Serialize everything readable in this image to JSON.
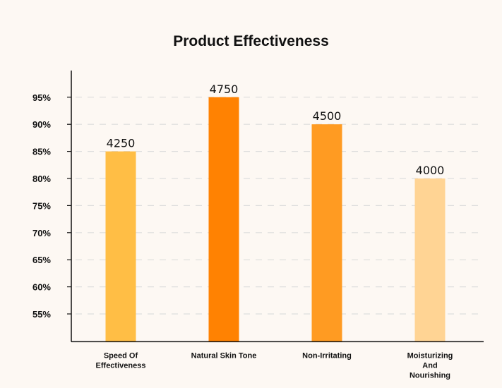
{
  "chart_data": {
    "type": "bar",
    "title": "Product Effectiveness",
    "xlabel": "",
    "ylabel": "",
    "categories": [
      [
        "Speed Of",
        "Effectiveness"
      ],
      [
        "Natural Skin Tone"
      ],
      [
        "Non-Irritating"
      ],
      [
        "Moisturizing",
        "And",
        "Nourishing"
      ]
    ],
    "values": [
      85,
      95,
      90,
      80
    ],
    "data_labels": [
      "4250",
      "4750",
      "4500",
      "4000"
    ],
    "bar_colors": [
      "#ffbe45",
      "#ff8202",
      "#ff9b22",
      "#ffd494"
    ],
    "yticks": [
      "55%",
      "60%",
      "65%",
      "70%",
      "75%",
      "80%",
      "85%",
      "90%",
      "95%"
    ],
    "ytick_values": [
      55,
      60,
      65,
      70,
      75,
      80,
      85,
      90,
      95
    ],
    "ylim": [
      50,
      100
    ],
    "grid": true,
    "grid_style": "dashed",
    "legend": "none"
  }
}
